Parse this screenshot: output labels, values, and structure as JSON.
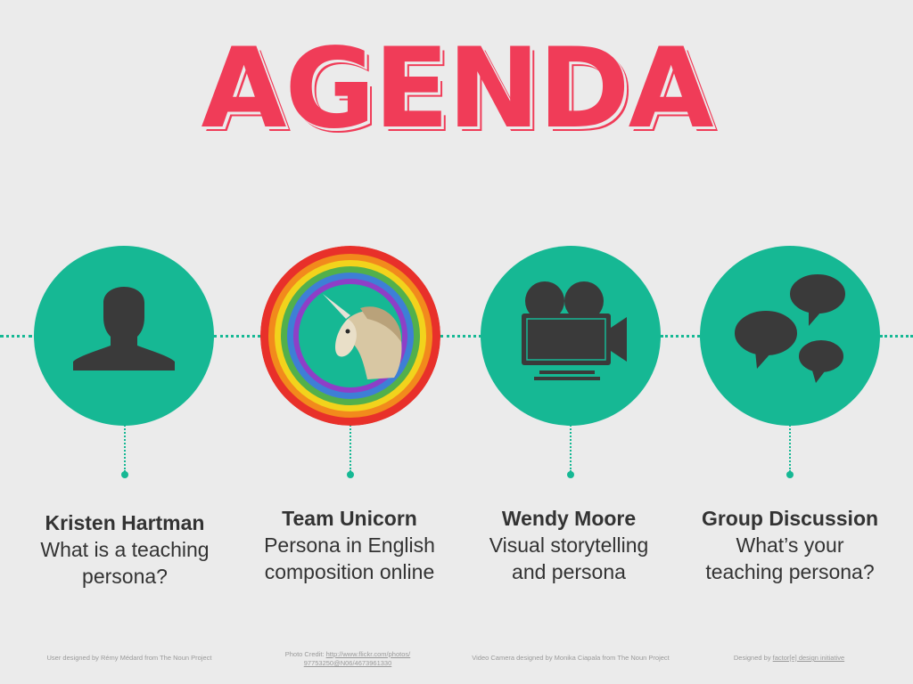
{
  "title": "AGENDA",
  "colors": {
    "accent": "#f03c58",
    "teal": "#16b894",
    "icon": "#3a3a3a",
    "text": "#333333",
    "background": "#ebebeb"
  },
  "items": [
    {
      "icon": "user-silhouette-icon",
      "name": "Kristen Hartman",
      "line1": "What is a teaching",
      "line2": "persona?"
    },
    {
      "icon": "unicorn-image",
      "name": "Team Unicorn",
      "line1": "Persona in English",
      "line2": "composition online"
    },
    {
      "icon": "video-camera-icon",
      "name": "Wendy Moore",
      "line1": "Visual storytelling",
      "line2": "and persona"
    },
    {
      "icon": "speech-bubbles-icon",
      "name": "Group Discussion",
      "line1": "What’s your",
      "line2": "teaching persona?"
    }
  ],
  "credits": [
    {
      "text": "User designed by Rémy Médard from The Noun Project"
    },
    {
      "prefix": "Photo Credit: ",
      "link1": "http://www.flickr.com/photos/",
      "link2": "97753250@N06/4673961330"
    },
    {
      "text": "Video Camera designed by Monika Ciapala from The Noun Project"
    },
    {
      "prefix": "Designed by ",
      "link": "factor[e] design initiative"
    }
  ]
}
